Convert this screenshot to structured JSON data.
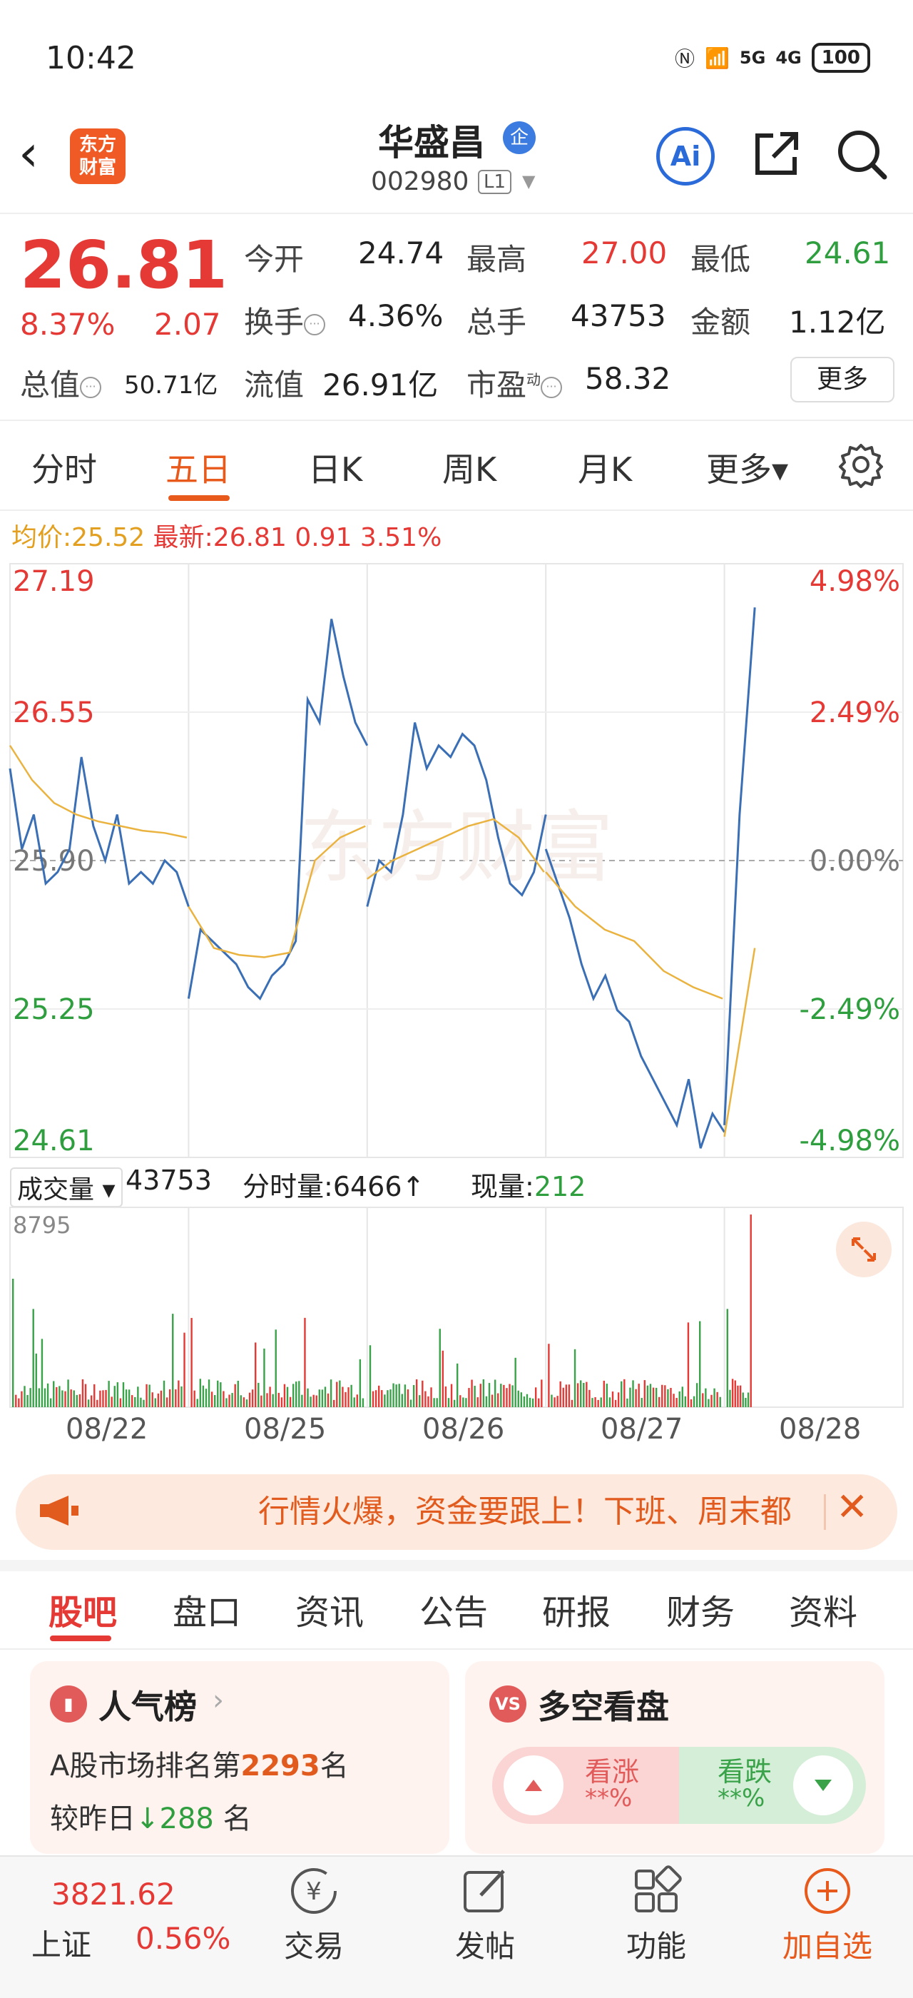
{
  "status_bar": {
    "time": "10:42",
    "network1": "6",
    "network2": "5G",
    "network3": "4G",
    "battery": "100"
  },
  "header": {
    "stock_name": "华盛昌",
    "badge": "企",
    "code": "002980",
    "level": "L1",
    "logo_line1": "东方",
    "logo_line2": "财富",
    "ai_label": "Ai"
  },
  "quote": {
    "price": "26.81",
    "change_pct": "8.37%",
    "change": "2.07",
    "open_label": "今开",
    "open": "24.74",
    "high_label": "最高",
    "high": "27.00",
    "low_label": "最低",
    "low": "24.61",
    "turnover_label": "换手",
    "turnover": "4.36%",
    "volume_label": "总手",
    "volume": "43753",
    "amount_label": "金额",
    "amount": "1.12亿",
    "mktcap_label": "总值",
    "mktcap": "50.71亿",
    "float_label": "流值",
    "float_cap": "26.91亿",
    "pe_label": "市盈",
    "pe_sup": "动",
    "pe": "58.32",
    "more_button": "更多"
  },
  "chart_tabs": [
    "分时",
    "五日",
    "日K",
    "周K",
    "月K",
    "更多▾"
  ],
  "avg_row": {
    "avg_label": "均价:",
    "avg": "25.52",
    "latest_label": "最新:",
    "latest": "26.81",
    "chg": "0.91",
    "chg_pct": "3.51%"
  },
  "chart_data": {
    "type": "line",
    "series": [],
    "y_ticks_left": [
      "27.19",
      "26.55",
      "25.90",
      "25.25",
      "24.61"
    ],
    "y_ticks_right": [
      "4.98%",
      "2.49%",
      "0.00%",
      "-2.49%",
      "-4.98%"
    ],
    "x_labels": [
      "08/22",
      "08/25",
      "08/26",
      "08/27",
      "08/28"
    ],
    "ylim": [
      24.61,
      27.19
    ],
    "watermark": "东方财富",
    "price": [
      [
        26.3,
        25.95,
        26.1,
        25.8,
        25.85,
        25.95,
        26.35,
        26.05,
        25.9,
        26.1,
        25.8,
        25.85,
        25.8,
        25.9,
        25.85,
        25.7
      ],
      [
        25.3,
        25.6,
        25.55,
        25.5,
        25.45,
        25.35,
        25.3,
        25.4,
        25.45,
        25.55,
        26.6,
        26.5,
        26.95,
        26.7,
        26.5,
        26.4
      ],
      [
        25.7,
        25.9,
        25.85,
        26.1,
        26.5,
        26.3,
        26.4,
        26.35,
        26.45,
        26.4,
        26.25,
        26.0,
        25.8,
        25.75,
        25.85,
        26.1
      ],
      [
        25.95,
        25.8,
        25.65,
        25.45,
        25.3,
        25.4,
        25.25,
        25.2,
        25.05,
        24.95,
        24.85,
        24.75,
        24.95,
        24.65,
        24.8,
        24.72
      ],
      [
        24.75,
        26.1,
        27.0
      ]
    ],
    "avg": [
      [
        26.4,
        26.25,
        26.15,
        26.1,
        26.07,
        26.05,
        26.03,
        26.02,
        26.0
      ],
      [
        25.7,
        25.52,
        25.49,
        25.48,
        25.5,
        25.9,
        26.0,
        26.05
      ],
      [
        25.82,
        25.9,
        25.95,
        26.0,
        26.05,
        26.08,
        26.0,
        25.85
      ],
      [
        25.85,
        25.7,
        25.6,
        25.55,
        25.42,
        25.35,
        25.3
      ],
      [
        24.7,
        25.52
      ]
    ],
    "volume_max": "8795"
  },
  "volume_row": {
    "label": "成交量",
    "total": "43753",
    "tick_label": "分时量:",
    "tick_val": "6466",
    "tick_arrow": "↑",
    "now_label": "现量:",
    "now_val": "212"
  },
  "banner": {
    "text": "行情火爆，资金要跟上！下班、周末都"
  },
  "bottom_tabs": [
    "股吧",
    "盘口",
    "资讯",
    "公告",
    "研报",
    "财务",
    "资料"
  ],
  "popularity_card": {
    "title": "人气榜",
    "line1_prefix": "A股市场排名第",
    "rank": "2293",
    "line1_suffix": "名",
    "line2_prefix": "较昨日",
    "delta": "288",
    "line2_suffix": "名"
  },
  "bull_bear_card": {
    "title": "多空看盘",
    "bull_label": "看涨",
    "bull_val": "**%",
    "bear_label": "看跌",
    "bear_val": "**%"
  },
  "nav": {
    "index_value": "3821.62",
    "index_name": "上证",
    "index_pct": "0.56%",
    "items": [
      "交易",
      "发帖",
      "功能",
      "加自选"
    ]
  }
}
